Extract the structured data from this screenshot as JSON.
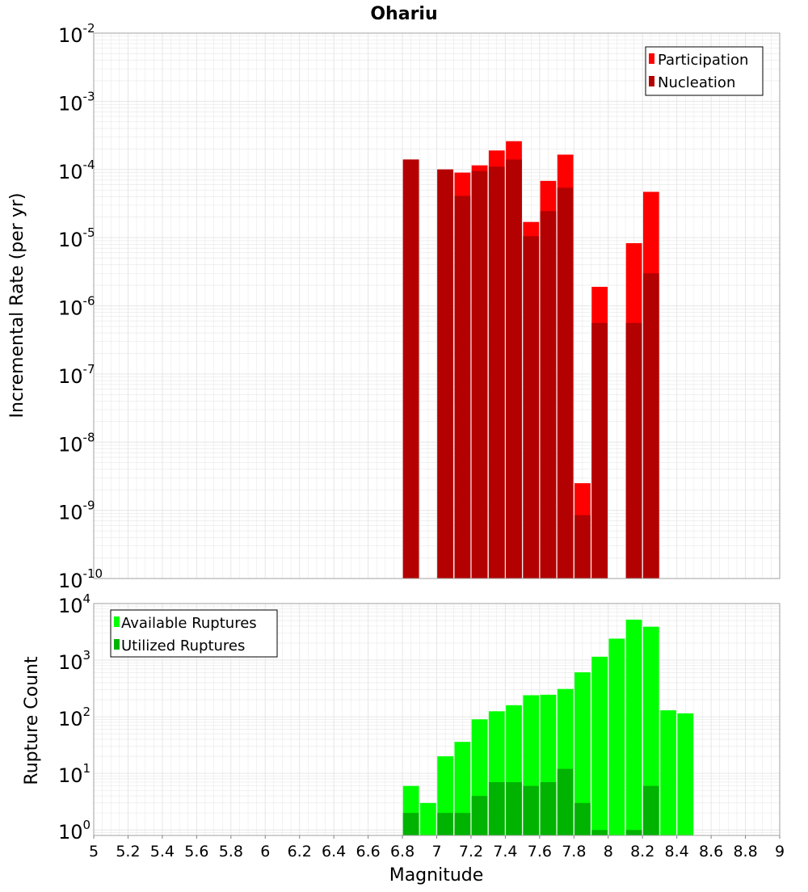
{
  "title": "Ohariu",
  "xlabel": "Magnitude",
  "colors": {
    "participation": "#ff0000",
    "nucleation": "#b30000",
    "available": "#00ff00",
    "utilized": "#00b300",
    "grid": "#e6e6e6",
    "frame": "#a0a0a0"
  },
  "chart_data": [
    {
      "type": "bar",
      "name": "rate-panel",
      "ylabel": "Incremental Rate (per yr)",
      "yscale": "log",
      "ylim": [
        1e-10,
        0.01
      ],
      "xlim": [
        5,
        9
      ],
      "grid": true,
      "legend_position": "top-right",
      "x": [
        6.85,
        7.05,
        7.15,
        7.25,
        7.35,
        7.45,
        7.55,
        7.65,
        7.75,
        7.85,
        7.95,
        8.15,
        8.25
      ],
      "series": [
        {
          "name": "Participation",
          "color": "#ff0000",
          "values": [
            0.00014,
            0.0001,
            9e-05,
            0.000115,
            0.00019,
            0.00026,
            1.7e-05,
            6.8e-05,
            0.000165,
            2.5e-09,
            1.9e-06,
            8.3e-06,
            4.7e-05
          ]
        },
        {
          "name": "Nucleation",
          "color": "#b30000",
          "values": [
            0.00014,
            0.0001,
            4.1e-05,
            9.5e-05,
            0.00011,
            0.00014,
            1.05e-05,
            2.45e-05,
            5.4e-05,
            8.5e-10,
            5.6e-07,
            5.6e-07,
            3e-06
          ]
        }
      ]
    },
    {
      "type": "bar",
      "name": "count-panel",
      "ylabel": "Rupture Count",
      "yscale": "log",
      "ylim": [
        0.8,
        10000
      ],
      "xlim": [
        5,
        9
      ],
      "grid": true,
      "legend_position": "top-left",
      "x": [
        6.85,
        6.95,
        7.05,
        7.15,
        7.25,
        7.35,
        7.45,
        7.55,
        7.65,
        7.75,
        7.85,
        7.95,
        8.05,
        8.15,
        8.25,
        8.35,
        8.45
      ],
      "series": [
        {
          "name": "Available Ruptures",
          "color": "#00ff00",
          "values": [
            6,
            3,
            20,
            36,
            90,
            125,
            160,
            240,
            245,
            310,
            610,
            1150,
            2400,
            5200,
            3900,
            130,
            115
          ]
        },
        {
          "name": "Utilized Ruptures",
          "color": "#00b300",
          "values": [
            2,
            0,
            2,
            2,
            4,
            7,
            7,
            6,
            7,
            12,
            3,
            1,
            0,
            1,
            6,
            0,
            0
          ]
        }
      ]
    }
  ],
  "x_ticks": [
    "5",
    "5.2",
    "5.4",
    "5.6",
    "5.8",
    "6",
    "6.2",
    "6.4",
    "6.6",
    "6.8",
    "7",
    "7.2",
    "7.4",
    "7.6",
    "7.8",
    "8",
    "8.2",
    "8.4",
    "8.6",
    "8.8",
    "9"
  ],
  "rate_y_ticks": [
    {
      "base": "10",
      "exp": "-10",
      "value": 1e-10
    },
    {
      "base": "10",
      "exp": "-9",
      "value": 1e-09
    },
    {
      "base": "10",
      "exp": "-8",
      "value": 1e-08
    },
    {
      "base": "10",
      "exp": "-7",
      "value": 1e-07
    },
    {
      "base": "10",
      "exp": "-6",
      "value": 1e-06
    },
    {
      "base": "10",
      "exp": "-5",
      "value": 1e-05
    },
    {
      "base": "10",
      "exp": "-4",
      "value": 0.0001
    },
    {
      "base": "10",
      "exp": "-3",
      "value": 0.001
    },
    {
      "base": "10",
      "exp": "-2",
      "value": 0.01
    }
  ],
  "count_y_ticks": [
    {
      "base": "10",
      "exp": "0",
      "value": 1
    },
    {
      "base": "10",
      "exp": "1",
      "value": 10
    },
    {
      "base": "10",
      "exp": "2",
      "value": 100
    },
    {
      "base": "10",
      "exp": "3",
      "value": 1000
    },
    {
      "base": "10",
      "exp": "4",
      "value": 10000
    }
  ]
}
